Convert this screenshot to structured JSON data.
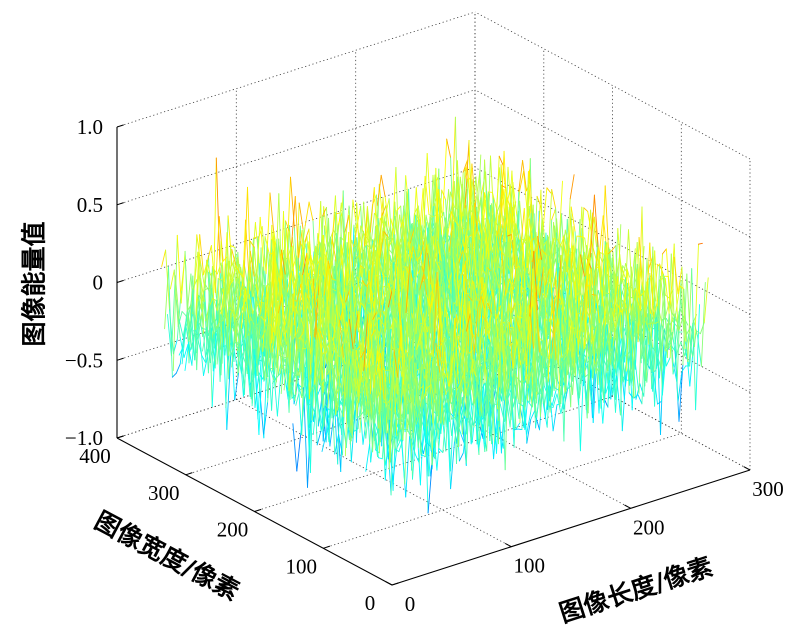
{
  "chart_data": {
    "type": "surface",
    "xlabel": "图像长度/像素",
    "ylabel": "图像宽度/像素",
    "zlabel": "图像能量值",
    "x_axis": {
      "range": [
        0,
        300
      ],
      "tick_values": [
        0,
        100,
        200,
        300
      ],
      "tick_labels": [
        "0",
        "100",
        "200",
        "300"
      ]
    },
    "y_axis": {
      "range": [
        0,
        400
      ],
      "tick_values": [
        0,
        100,
        200,
        300,
        400
      ],
      "tick_labels": [
        "0",
        "100",
        "200",
        "300",
        "400"
      ]
    },
    "z_axis": {
      "range": [
        -1,
        1
      ],
      "tick_values": [
        -1,
        -0.5,
        0,
        0.5,
        1
      ],
      "tick_labels": [
        "−1.0",
        "−0.5",
        "0",
        "0.5",
        "1.0"
      ]
    },
    "grid": true,
    "colormap": "jet",
    "surface": {
      "x_extent": [
        0,
        265
      ],
      "y_extent": [
        0,
        335
      ],
      "value_range": [
        -0.8,
        1.0
      ]
    },
    "colors": {
      "background": "#ffffff",
      "axis": "#000000",
      "grid": "#3a3a3a"
    }
  }
}
